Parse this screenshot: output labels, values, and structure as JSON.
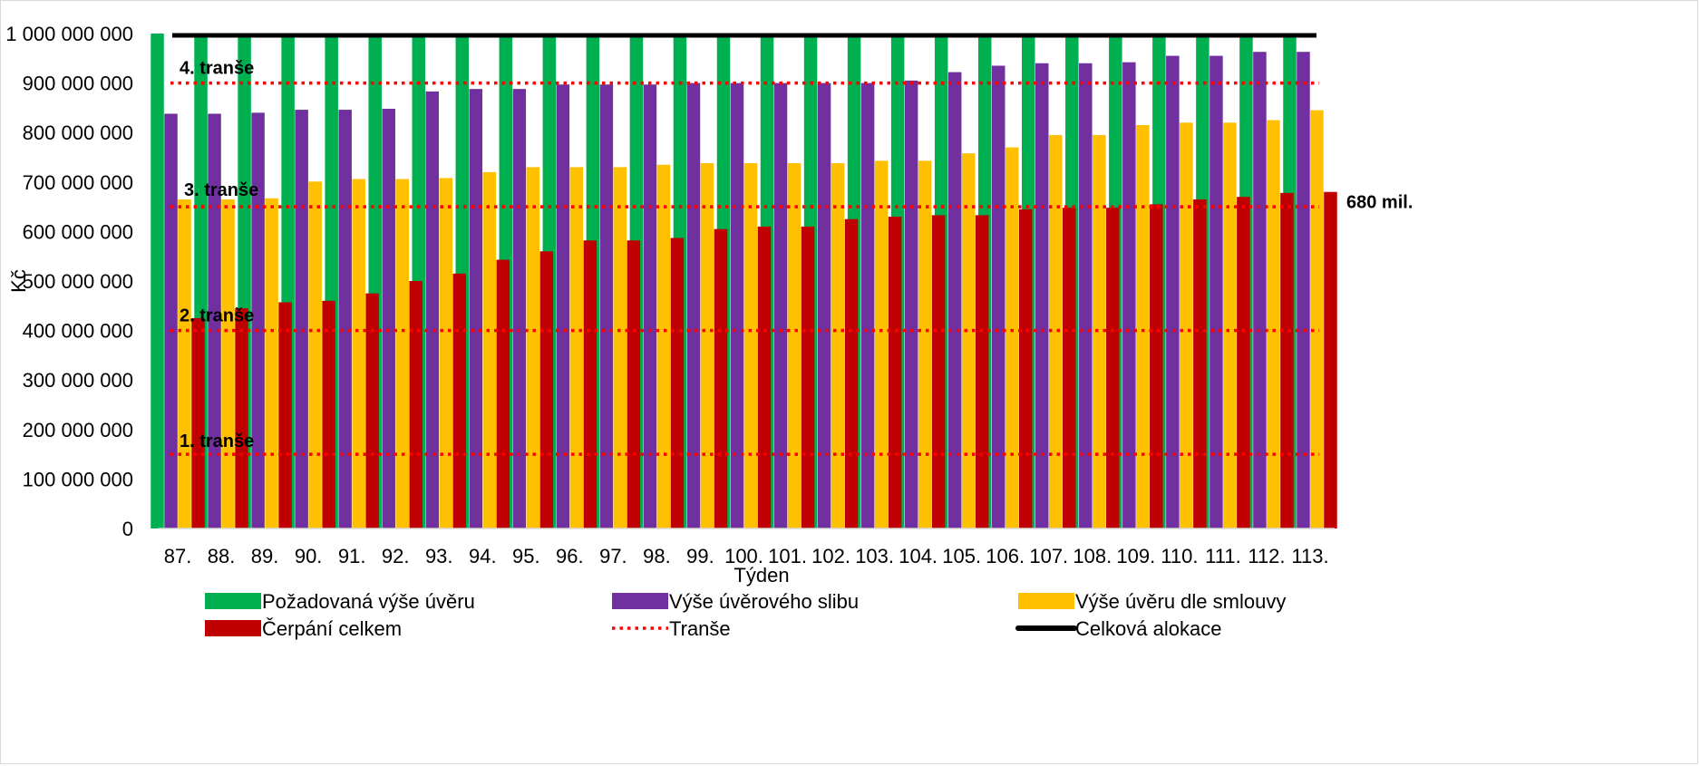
{
  "chart_data": {
    "type": "bar",
    "xlabel": "Týden",
    "ylabel": "Kč",
    "ylim": [
      0,
      1000000000
    ],
    "yticks": [
      0,
      100000000,
      200000000,
      300000000,
      400000000,
      500000000,
      600000000,
      700000000,
      800000000,
      900000000,
      1000000000
    ],
    "ytick_labels": [
      "0",
      "100 000 000",
      "200 000 000",
      "300 000 000",
      "400 000 000",
      "500 000 000",
      "600 000 000",
      "700 000 000",
      "800 000 000",
      "900 000 000",
      "1 000 000 000"
    ],
    "categories": [
      "87.",
      "88.",
      "89.",
      "90.",
      "91.",
      "92.",
      "93.",
      "94.",
      "95.",
      "96.",
      "97.",
      "98.",
      "99.",
      "100.",
      "101.",
      "102.",
      "103.",
      "104.",
      "105.",
      "106.",
      "107.",
      "108.",
      "109.",
      "110.",
      "111.",
      "112.",
      "113."
    ],
    "series": [
      {
        "name": "Požadovaná výše úvěru",
        "color": "#00b050",
        "values": [
          1000000000,
          1000000000,
          1000000000,
          1000000000,
          1000000000,
          1000000000,
          1000000000,
          1000000000,
          1000000000,
          1000000000,
          1000000000,
          1000000000,
          1000000000,
          1000000000,
          1000000000,
          1000000000,
          1000000000,
          1000000000,
          1000000000,
          1000000000,
          1000000000,
          1000000000,
          1000000000,
          1000000000,
          1000000000,
          1000000000,
          1000000000
        ]
      },
      {
        "name": "Výše úvěrového slibu",
        "color": "#7030a0",
        "values": [
          838000000,
          838000000,
          840000000,
          846000000,
          846000000,
          848000000,
          883000000,
          888000000,
          888000000,
          897000000,
          897000000,
          897000000,
          900000000,
          900000000,
          900000000,
          900000000,
          900000000,
          905000000,
          922000000,
          935000000,
          940000000,
          940000000,
          942000000,
          955000000,
          955000000,
          963000000,
          963000000
        ]
      },
      {
        "name": "Výše úvěru dle smlouvy",
        "color": "#ffc000",
        "values": [
          665000000,
          665000000,
          667000000,
          701000000,
          706000000,
          706000000,
          708000000,
          720000000,
          730000000,
          730000000,
          730000000,
          735000000,
          738000000,
          738000000,
          738000000,
          738000000,
          743000000,
          743000000,
          758000000,
          770000000,
          795000000,
          795000000,
          815000000,
          820000000,
          820000000,
          825000000,
          845000000
        ]
      },
      {
        "name": "Čerpání celkem",
        "color": "#c00000",
        "values": [
          425000000,
          445000000,
          457000000,
          460000000,
          475000000,
          500000000,
          515000000,
          543000000,
          560000000,
          582000000,
          582000000,
          587000000,
          605000000,
          610000000,
          610000000,
          625000000,
          630000000,
          633000000,
          633000000,
          645000000,
          648000000,
          648000000,
          655000000,
          665000000,
          670000000,
          678000000,
          680000000
        ]
      }
    ],
    "lines": [
      {
        "name": "Tranše",
        "style": "dotted",
        "color": "#ff0000",
        "levels": [
          150000000,
          400000000,
          650000000,
          900000000
        ],
        "labels": [
          "1. tranše",
          "2. tranše",
          "3. tranše",
          "4. tranše"
        ]
      },
      {
        "name": "Celková alokace",
        "style": "solid",
        "color": "#000000",
        "value": 1000000000
      }
    ],
    "annotations": [
      {
        "text": "680 mil.",
        "value": 680000000
      }
    ],
    "legend": "bottom"
  }
}
